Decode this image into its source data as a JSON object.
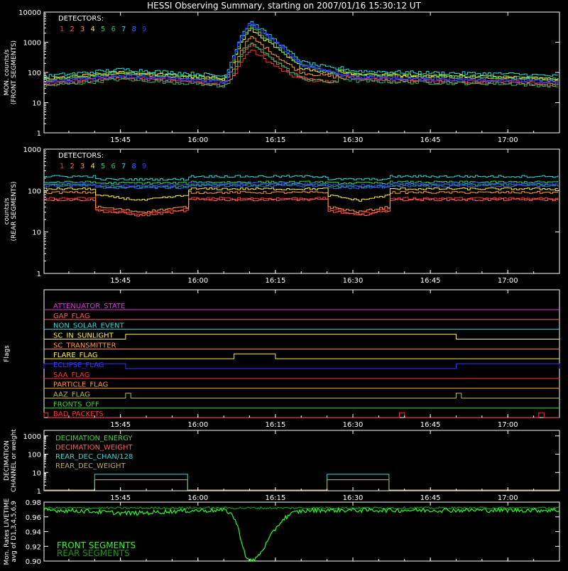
{
  "title": "HESSI Observing Summary, starting on 2007/01/16 15:30:12 UT",
  "time_ticks": [
    "15:45",
    "16:00",
    "16:15",
    "16:30",
    "16:45",
    "17:00"
  ],
  "detector_colors": [
    "#ff3030",
    "#ff5a5a",
    "#ff9933",
    "#ffee44",
    "#33dd33",
    "#22bb55",
    "#22dddd",
    "#3366ff",
    "#3333ff"
  ],
  "chart_data": [
    {
      "id": "front",
      "type": "line",
      "ylabel": [
        "MON. counts/s",
        "(FRONT SEGMENTS)"
      ],
      "log": true,
      "ylim": [
        1,
        10000
      ],
      "yticks": [
        "1",
        "10",
        "100",
        "1000",
        "10000"
      ],
      "legend_title": "DETECTORS:",
      "legend_labels": [
        "1",
        "2",
        "3",
        "4",
        "5",
        "6",
        "7",
        "8",
        "9"
      ],
      "x_range": [
        "15:30:12",
        "17:10"
      ],
      "series_profile": {
        "t": [
          "15:30",
          "15:45",
          "16:00",
          "16:05",
          "16:08",
          "16:10",
          "16:14",
          "16:20",
          "16:30",
          "16:45",
          "17:00",
          "17:10"
        ],
        "relative": [
          1.0,
          1.7,
          1.2,
          1.0,
          30,
          100,
          30,
          4,
          1.5,
          1.3,
          1.2,
          1.0
        ]
      },
      "series_base": [
        42,
        38,
        55,
        60,
        58,
        35,
        75,
        48,
        45
      ],
      "series_peak": [
        550,
        900,
        1500,
        2800,
        3500,
        1200,
        5000,
        4200,
        4500
      ]
    },
    {
      "id": "rear",
      "type": "line",
      "ylabel": [
        "counts/s",
        "(REAR SEGMENTS)"
      ],
      "log": true,
      "ylim": [
        1,
        1000
      ],
      "yticks": [
        "1",
        "10",
        "100",
        "1000"
      ],
      "legend_title": "DETECTORS:",
      "legend_labels": [
        "1",
        "2",
        "3",
        "4",
        "5",
        "6",
        "7",
        "8",
        "9"
      ],
      "series_levels": [
        65,
        60,
        90,
        110,
        160,
        140,
        220,
        130,
        150
      ],
      "attenuated_intervals": [
        [
          "15:40",
          "15:58"
        ],
        [
          "16:25",
          "16:37"
        ]
      ],
      "attenuated_factor": [
        0.55,
        0.55,
        0.45,
        0.7,
        0.95,
        0.9,
        0.85,
        0.9,
        0.9
      ]
    },
    {
      "id": "flags",
      "type": "step",
      "ylabel": [
        "Flags"
      ],
      "flags": [
        {
          "name": "ATTENUATOR_STATE",
          "color": "#dd33dd",
          "on": []
        },
        {
          "name": "GAP_FLAG",
          "color": "#ff5a5a",
          "on": []
        },
        {
          "name": "NON_SOLAR_EVENT",
          "color": "#22dddd",
          "on": []
        },
        {
          "name": "SC_IN_SUNLIGHT",
          "color": "#ffee44",
          "on": [
            [
              "15:46",
              "16:50"
            ]
          ]
        },
        {
          "name": "SC_TRANSMITTER",
          "color": "#ff9933",
          "on": []
        },
        {
          "name": "FLARE_FLAG",
          "color": "#ffee44",
          "on": [
            [
              "16:07",
              "16:15"
            ]
          ]
        },
        {
          "name": "ECLIPSE_FLAG",
          "color": "#3333ff",
          "on": [
            [
              "15:30",
              "15:46"
            ],
            [
              "16:50",
              "17:10"
            ]
          ]
        },
        {
          "name": "SAA_FLAG",
          "color": "#ff3030",
          "on": []
        },
        {
          "name": "PARTICLE_FLAG",
          "color": "#ff9933",
          "on": []
        },
        {
          "name": "AAZ_FLAG",
          "color": "#bbbb33",
          "on": [
            [
              "15:46",
              "15:47"
            ],
            [
              "16:50",
              "16:51"
            ]
          ]
        },
        {
          "name": "FRONTS_OFF",
          "color": "#33dd33",
          "on": []
        },
        {
          "name": "BAD_PACKETS",
          "color": "#ff3030",
          "on": [
            [
              "15:30",
              "15:31"
            ],
            [
              "16:39",
              "16:40"
            ],
            [
              "17:06",
              "17:07"
            ]
          ]
        }
      ]
    },
    {
      "id": "decimation",
      "type": "step",
      "ylabel": [
        "DECIMATION",
        "CHANNEL or weight"
      ],
      "log": true,
      "ylim": [
        1,
        2000
      ],
      "yticks": [
        "1",
        "10",
        "100",
        "1000"
      ],
      "series": [
        {
          "name": "DECIMATION_ENERGY",
          "color": "#33dd33",
          "values": []
        },
        {
          "name": "DECIMATION_WEIGHT",
          "color": "#ff5a5a",
          "values": []
        },
        {
          "name": "REAR_DEC_CHAN/128",
          "color": "#22dddd",
          "level": 8,
          "on": [
            [
              "15:40",
              "15:58"
            ],
            [
              "16:25",
              "16:37"
            ]
          ]
        },
        {
          "name": "REAR_DEC_WEIGHT",
          "color": "#bbaa55",
          "level": 4,
          "on": [
            [
              "15:40",
              "15:58"
            ],
            [
              "16:25",
              "16:37"
            ]
          ]
        }
      ]
    },
    {
      "id": "livetime",
      "type": "line",
      "ylabel": [
        "Mon. Rates LIVETIME",
        "avg of D1,3,4,5,6,9"
      ],
      "ylim": [
        0.9,
        0.98
      ],
      "yticks": [
        "0.90",
        "0.92",
        "0.94",
        "0.96",
        "0.98"
      ],
      "series": [
        {
          "name": "FRONT SEGMENTS",
          "color": "#22ff22",
          "baseline": 0.969,
          "min": 0.9,
          "min_time": "16:10"
        },
        {
          "name": "REAR SEGMENTS",
          "color": "#119911",
          "baseline": 0.972,
          "min": 0.97,
          "min_time": "16:10"
        }
      ]
    }
  ]
}
